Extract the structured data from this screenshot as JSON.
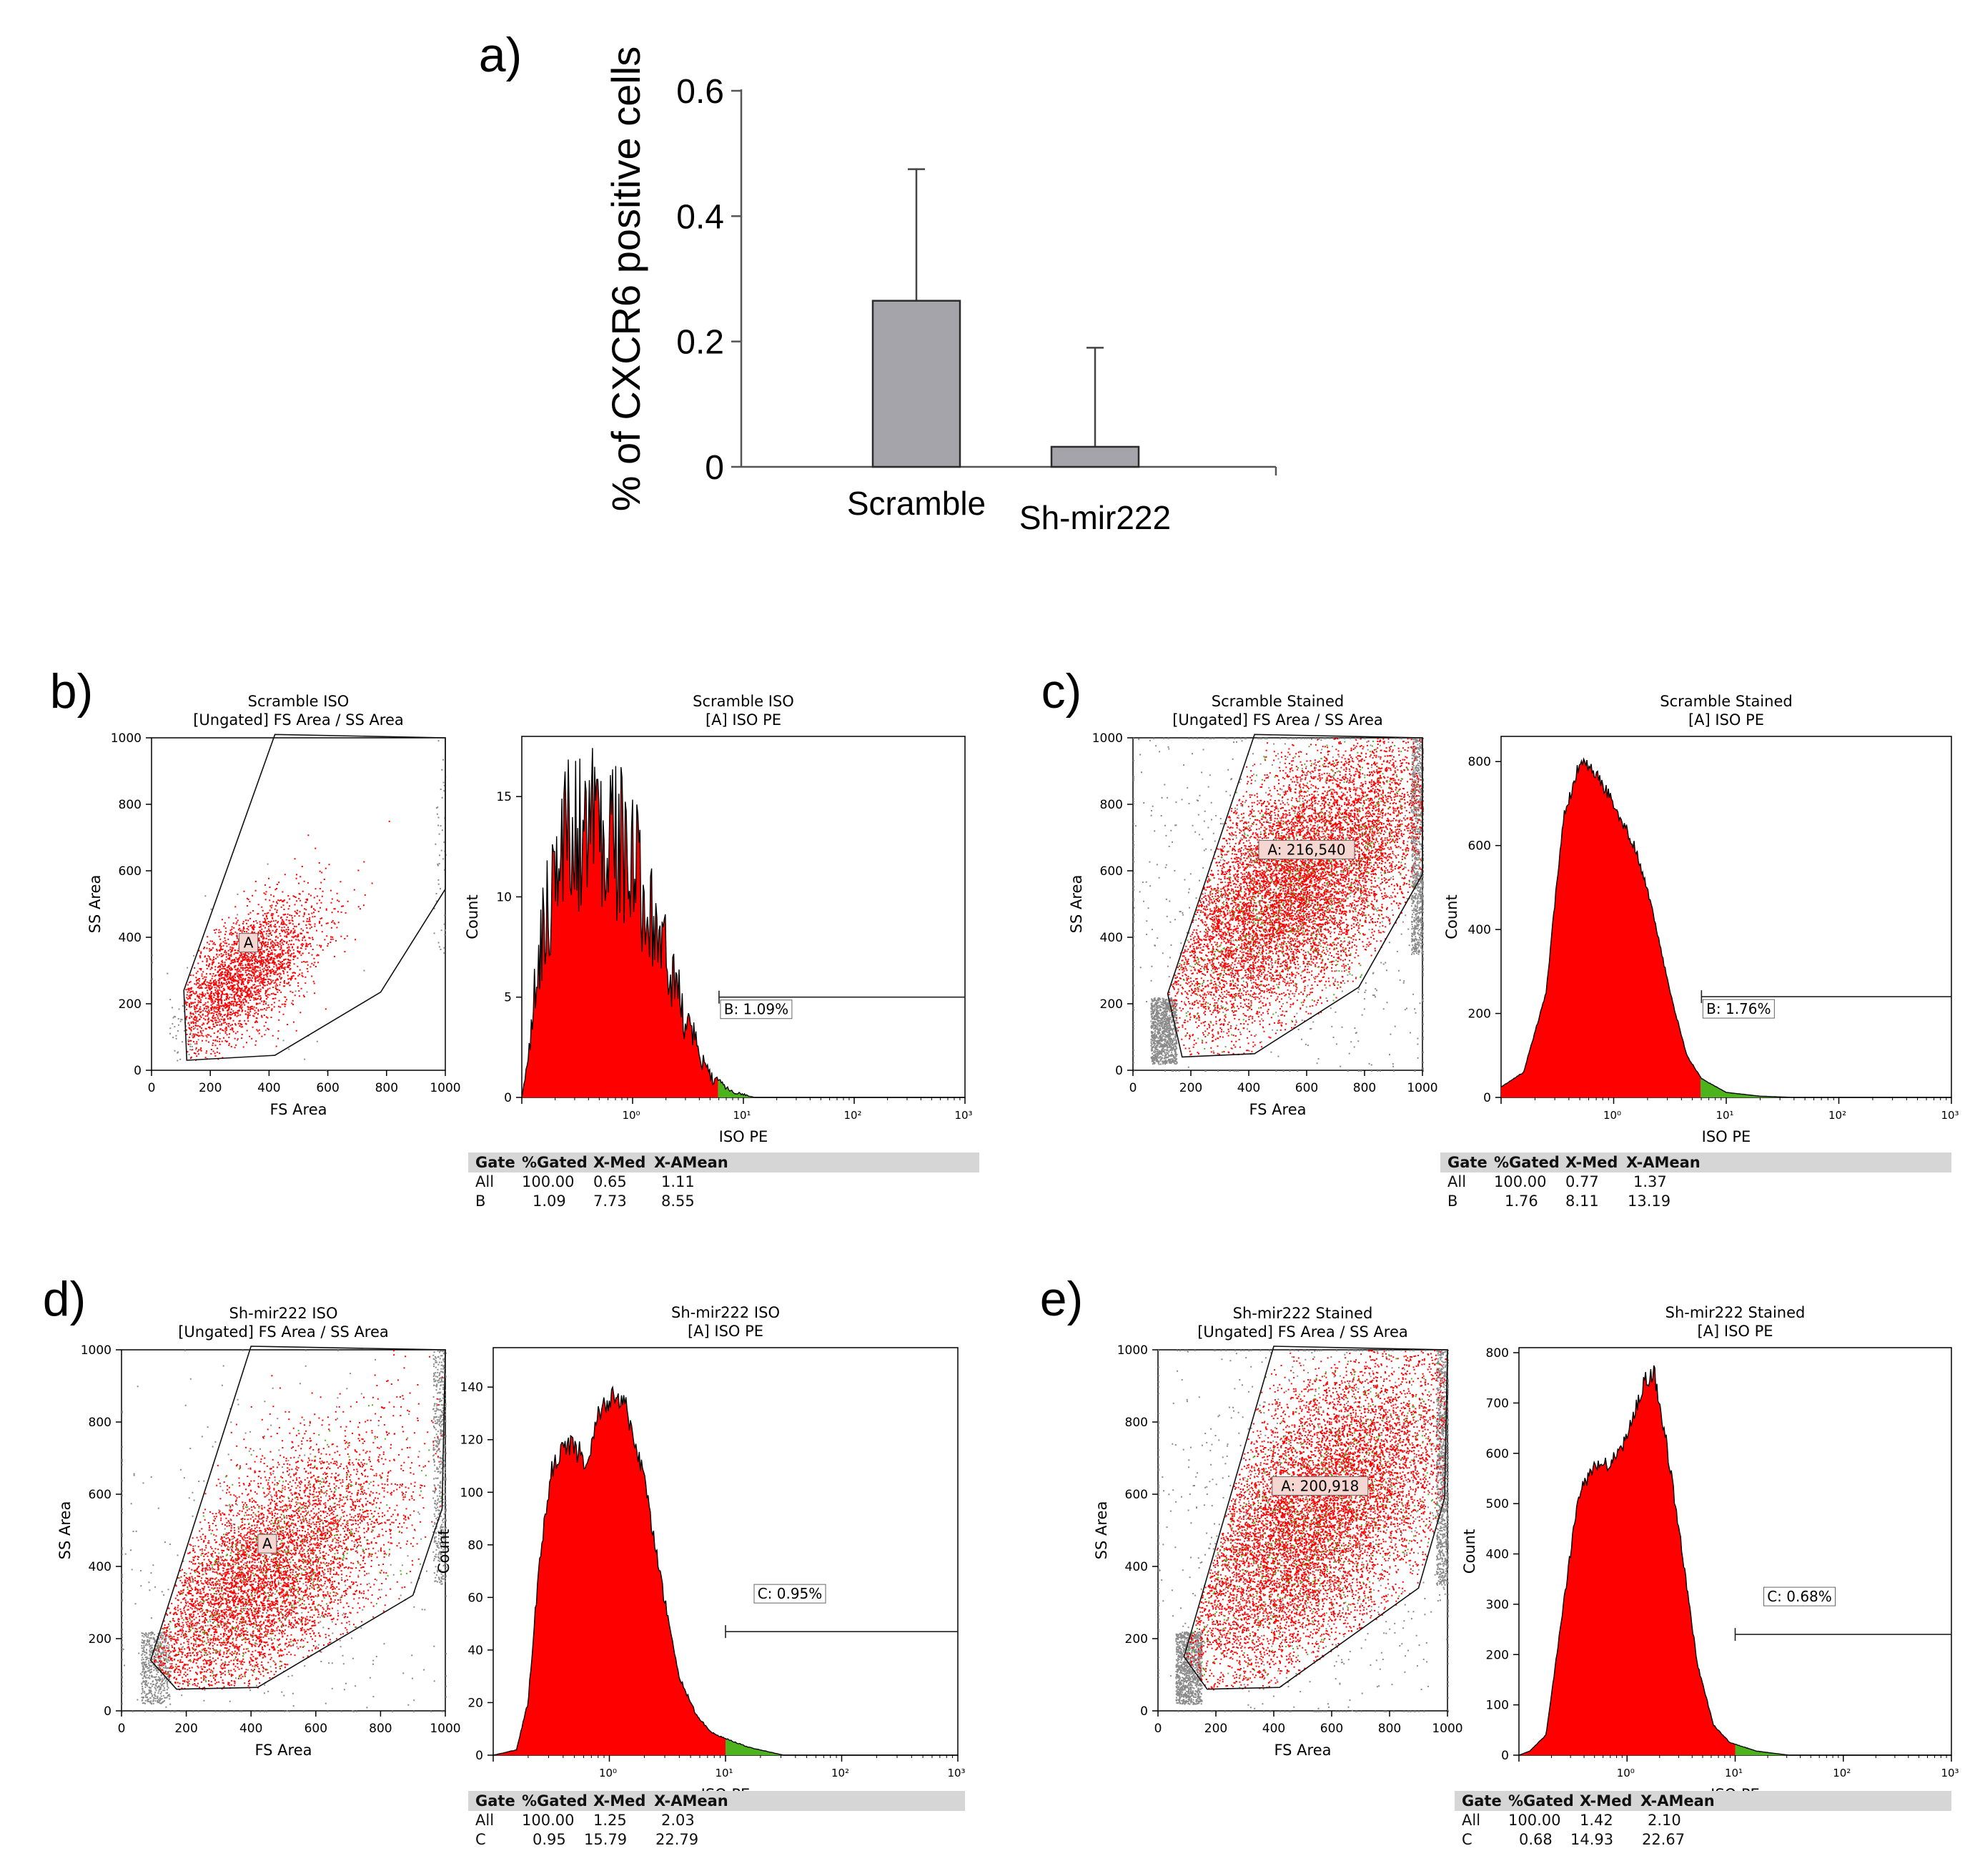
{
  "colors": {
    "bar_fill": "#a5a4aa",
    "bar_stroke": "#2b2b2b",
    "red": "#ff0000",
    "green": "#4cb31c",
    "gray_events": "#8a8a8a",
    "table_header": "#d6d6d6"
  },
  "chart_data": [
    {
      "id": "a",
      "panel_label": "a)",
      "type": "bar",
      "categories": [
        "Scramble",
        "Sh-mir222"
      ],
      "values": [
        0.265,
        0.032
      ],
      "error_upper": [
        0.475,
        0.19
      ],
      "title": "",
      "xlabel": "",
      "ylabel": "% of CXCR6 positive cells",
      "ylim": [
        0,
        0.6
      ],
      "yticks": [
        0,
        0.2,
        0.4,
        0.6
      ],
      "ytick_labels": [
        "0",
        "0.2",
        "0.4",
        "0.6"
      ]
    },
    {
      "id": "b",
      "panel_label": "b)",
      "scatter": {
        "type": "scatter",
        "title_line1": "Scramble ISO",
        "title_line2": "[Ungated] FS Area / SS Area",
        "xlabel": "FS Area",
        "ylabel": "SS Area",
        "xlim": [
          0,
          1000
        ],
        "ylim": [
          0,
          1000
        ],
        "xticks": [
          0,
          200,
          400,
          600,
          800,
          1000
        ],
        "yticks": [
          0,
          200,
          400,
          600,
          800,
          1000
        ],
        "gate_label": "A",
        "gate_polygon": [
          [
            120,
            30
          ],
          [
            420,
            45
          ],
          [
            780,
            235
          ],
          [
            1000,
            545
          ],
          [
            1000,
            1000
          ],
          [
            420,
            1010
          ],
          [
            110,
            240
          ]
        ],
        "cluster_center": [
          300,
          280
        ],
        "cluster_spread": [
          140,
          110
        ],
        "density": "sparse",
        "has_green": false
      },
      "histogram": {
        "type": "area",
        "title_line1": "Scramble ISO",
        "title_line2": "[A] ISO PE",
        "xlabel": "ISO PE",
        "ylabel": "Count",
        "xscale": "log",
        "xlim_decades": [
          -1,
          3
        ],
        "x_tick_labels": [
          "10⁰",
          "10¹",
          "10²",
          "10³"
        ],
        "ylim": [
          0,
          18
        ],
        "yticks": [
          0,
          5,
          10,
          15
        ],
        "shape": [
          [
            -1,
            0
          ],
          [
            -0.95,
            2
          ],
          [
            -0.8,
            9
          ],
          [
            -0.6,
            13
          ],
          [
            -0.3,
            14
          ],
          [
            -0.1,
            12.5
          ],
          [
            0.15,
            10
          ],
          [
            0.3,
            7
          ],
          [
            0.5,
            3.5
          ],
          [
            0.7,
            1
          ],
          [
            0.9,
            0.3
          ],
          [
            1.1,
            0
          ],
          [
            3,
            0
          ]
        ],
        "noise": 0.32,
        "gate_label": "B: 1.09%",
        "gate_start_log": 0.78,
        "gate_y": 5.0
      },
      "stats": {
        "header": [
          "Gate",
          "%Gated",
          "X-Med",
          "X-AMean"
        ],
        "rows": [
          [
            "All",
            "100.00",
            "0.65",
            "1.11"
          ],
          [
            "B",
            "1.09",
            "7.73",
            "8.55"
          ]
        ]
      }
    },
    {
      "id": "c",
      "panel_label": "c)",
      "scatter": {
        "type": "scatter",
        "title_line1": "Scramble Stained",
        "title_line2": "[Ungated] FS Area / SS Area",
        "xlabel": "FS Area",
        "ylabel": "SS Area",
        "xlim": [
          0,
          1000
        ],
        "ylim": [
          0,
          1000
        ],
        "xticks": [
          0,
          200,
          400,
          600,
          800,
          1000
        ],
        "yticks": [
          0,
          200,
          400,
          600,
          800,
          1000
        ],
        "gate_label": "A: 216,540",
        "gate_polygon": [
          [
            170,
            40
          ],
          [
            420,
            50
          ],
          [
            780,
            250
          ],
          [
            1000,
            590
          ],
          [
            1000,
            1000
          ],
          [
            420,
            1010
          ],
          [
            120,
            230
          ]
        ],
        "cluster_center": [
          560,
          560
        ],
        "cluster_spread": [
          260,
          230
        ],
        "density": "dense",
        "has_green": true
      },
      "histogram": {
        "type": "area",
        "title_line1": "Scramble Stained",
        "title_line2": "[A] ISO PE",
        "xlabel": "ISO PE",
        "ylabel": "Count",
        "xscale": "log",
        "xlim_decades": [
          -1,
          3
        ],
        "x_tick_labels": [
          "10⁰",
          "10¹",
          "10²",
          "10³"
        ],
        "ylim": [
          0,
          860
        ],
        "yticks": [
          0,
          200,
          400,
          600,
          800
        ],
        "shape": [
          [
            -1,
            25
          ],
          [
            -0.8,
            60
          ],
          [
            -0.6,
            250
          ],
          [
            -0.45,
            660
          ],
          [
            -0.3,
            800
          ],
          [
            -0.2,
            790
          ],
          [
            0,
            700
          ],
          [
            0.2,
            590
          ],
          [
            0.35,
            440
          ],
          [
            0.5,
            250
          ],
          [
            0.65,
            100
          ],
          [
            0.78,
            45
          ],
          [
            1.0,
            12
          ],
          [
            1.3,
            3
          ],
          [
            1.6,
            0
          ],
          [
            3,
            0
          ]
        ],
        "noise": 0.02,
        "gate_label": "B: 1.76%",
        "gate_start_log": 0.78,
        "gate_y": 240
      },
      "stats": {
        "header": [
          "Gate",
          "%Gated",
          "X-Med",
          "X-AMean"
        ],
        "rows": [
          [
            "All",
            "100.00",
            "0.77",
            "1.37"
          ],
          [
            "B",
            "1.76",
            "8.11",
            "13.19"
          ]
        ]
      }
    },
    {
      "id": "d",
      "panel_label": "d)",
      "scatter": {
        "type": "scatter",
        "title_line1": "Sh-mir222 ISO",
        "title_line2": "[Ungated] FS Area / SS Area",
        "xlabel": "FS Area",
        "ylabel": "SS Area",
        "xlim": [
          0,
          1000
        ],
        "ylim": [
          0,
          1000
        ],
        "xticks": [
          0,
          200,
          400,
          600,
          800,
          1000
        ],
        "yticks": [
          0,
          200,
          400,
          600,
          800,
          1000
        ],
        "gate_label": "A",
        "gate_polygon": [
          [
            170,
            60
          ],
          [
            420,
            65
          ],
          [
            900,
            320
          ],
          [
            990,
            560
          ],
          [
            1000,
            1000
          ],
          [
            400,
            1010
          ],
          [
            90,
            140
          ]
        ],
        "cluster_center": [
          420,
          360
        ],
        "cluster_spread": [
          220,
          190
        ],
        "density": "medium",
        "has_green": true
      },
      "histogram": {
        "type": "area",
        "title_line1": "Sh-mir222 ISO",
        "title_line2": "[A] ISO PE",
        "xlabel": "ISO PE",
        "ylabel": "Count",
        "xscale": "log",
        "xlim_decades": [
          -1,
          3
        ],
        "x_tick_labels": [
          "10⁰",
          "10¹",
          "10²",
          "10³"
        ],
        "ylim": [
          0,
          155
        ],
        "yticks": [
          0,
          20,
          40,
          60,
          80,
          100,
          120,
          140
        ],
        "shape": [
          [
            -1,
            0
          ],
          [
            -0.8,
            2
          ],
          [
            -0.7,
            20
          ],
          [
            -0.6,
            75
          ],
          [
            -0.5,
            108
          ],
          [
            -0.4,
            118
          ],
          [
            -0.3,
            117
          ],
          [
            -0.2,
            112
          ],
          [
            -0.1,
            128
          ],
          [
            0.05,
            138
          ],
          [
            0.15,
            132
          ],
          [
            0.3,
            105
          ],
          [
            0.45,
            65
          ],
          [
            0.6,
            30
          ],
          [
            0.75,
            15
          ],
          [
            0.9,
            8
          ],
          [
            1.2,
            3
          ],
          [
            1.5,
            0
          ],
          [
            3,
            0
          ]
        ],
        "noise": 0.04,
        "gate_label": "C: 0.95%",
        "gate_start_log": 1.0,
        "gate_y": 47
      },
      "stats": {
        "header": [
          "Gate",
          "%Gated",
          "X-Med",
          "X-AMean"
        ],
        "rows": [
          [
            "All",
            "100.00",
            "1.25",
            "2.03"
          ],
          [
            "C",
            "0.95",
            "15.79",
            "22.79"
          ]
        ]
      }
    },
    {
      "id": "e",
      "panel_label": "e)",
      "scatter": {
        "type": "scatter",
        "title_line1": "Sh-mir222 Stained",
        "title_line2": "[Ungated] FS Area / SS Area",
        "xlabel": "FS Area",
        "ylabel": "SS Area",
        "xlim": [
          0,
          1000
        ],
        "ylim": [
          0,
          1000
        ],
        "xticks": [
          0,
          200,
          400,
          600,
          800,
          1000
        ],
        "yticks": [
          0,
          200,
          400,
          600,
          800,
          1000
        ],
        "gate_label": "A: 200,918",
        "gate_polygon": [
          [
            170,
            60
          ],
          [
            420,
            65
          ],
          [
            900,
            340
          ],
          [
            990,
            590
          ],
          [
            1000,
            1000
          ],
          [
            400,
            1010
          ],
          [
            90,
            150
          ]
        ],
        "cluster_center": [
          520,
          520
        ],
        "cluster_spread": [
          270,
          240
        ],
        "density": "dense",
        "has_green": true
      },
      "histogram": {
        "type": "area",
        "title_line1": "Sh-mir222 Stained",
        "title_line2": "[A] ISO PE",
        "xlabel": "ISO PE",
        "ylabel": "Count",
        "xscale": "log",
        "xlim_decades": [
          -1,
          3
        ],
        "x_tick_labels": [
          "10⁰",
          "10¹",
          "10²",
          "10³"
        ],
        "ylim": [
          0,
          810
        ],
        "yticks": [
          0,
          100,
          200,
          300,
          400,
          500,
          600,
          700,
          800
        ],
        "shape": [
          [
            -1,
            0
          ],
          [
            -0.9,
            8
          ],
          [
            -0.75,
            40
          ],
          [
            -0.6,
            280
          ],
          [
            -0.45,
            520
          ],
          [
            -0.3,
            575
          ],
          [
            -0.15,
            580
          ],
          [
            0,
            630
          ],
          [
            0.15,
            740
          ],
          [
            0.25,
            760
          ],
          [
            0.35,
            640
          ],
          [
            0.5,
            420
          ],
          [
            0.65,
            180
          ],
          [
            0.8,
            60
          ],
          [
            0.95,
            25
          ],
          [
            1.2,
            8
          ],
          [
            1.5,
            0
          ],
          [
            3,
            0
          ]
        ],
        "noise": 0.025,
        "gate_label": "C: 0.68%",
        "gate_start_log": 1.0,
        "gate_y": 240
      },
      "stats": {
        "header": [
          "Gate",
          "%Gated",
          "X-Med",
          "X-AMean"
        ],
        "rows": [
          [
            "All",
            "100.00",
            "1.42",
            "2.10"
          ],
          [
            "C",
            "0.68",
            "14.93",
            "22.67"
          ]
        ]
      }
    }
  ]
}
